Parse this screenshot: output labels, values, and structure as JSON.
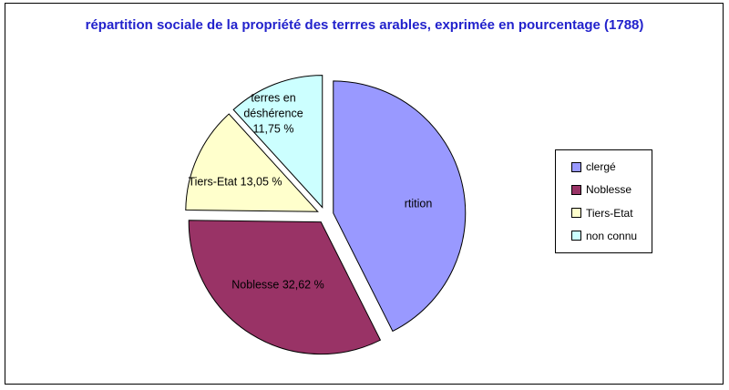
{
  "chart_data": {
    "type": "pie",
    "title": "répartition sociale de la propriété des terrres arables, exprimée en pourcentage (1788)",
    "title_color": "#2222CC",
    "categories": [
      "clergé",
      "Noblesse",
      "Tiers-Etat",
      "non connu"
    ],
    "values": [
      42.58,
      32.62,
      13.05,
      11.75
    ],
    "colors": [
      "#9999FF",
      "#993366",
      "#FFFFCC",
      "#CCFFFF"
    ],
    "slice_ids": [
      "clerge",
      "noblesse",
      "tiers-etat",
      "non-connu"
    ],
    "value_labels": [
      "rtition",
      "Noblesse 32,62 %",
      "Tiers-Etat 13,05 %",
      "terres en\ndéshérence\n11,75 %"
    ],
    "legend": {
      "position": "right",
      "entries": [
        "clergé",
        "Noblesse",
        "Tiers-Etat",
        "non connu"
      ]
    },
    "start_angle_deg": 0,
    "direction": "clockwise",
    "exploded": true,
    "border_color": "#000000",
    "background": "#FFFFFF"
  }
}
